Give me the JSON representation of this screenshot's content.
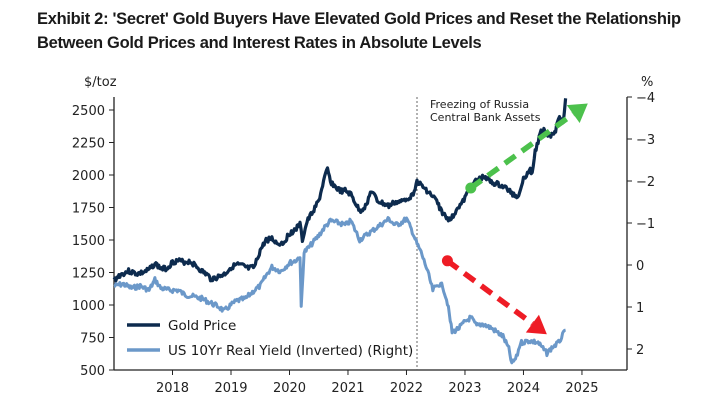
{
  "title_line1": "Exhibit 2: 'Secret' Gold Buyers Have Elevated Gold Prices and Reset the Relationship",
  "title_line2": "Between Gold Prices and Interest Rates in Absolute Levels",
  "chart_data": {
    "type": "line",
    "title": "Exhibit 2: 'Secret' Gold Buyers Have Elevated Gold Prices and Reset the Relationship Between Gold Prices and Interest Rates in Absolute Levels",
    "xlabel": "",
    "ylabel_left": "$/toz",
    "ylabel_right": "%",
    "xlim": [
      2017.0,
      2025.77
    ],
    "ylim_left": [
      500,
      2600
    ],
    "ylim_right": [
      2.5,
      -4.0
    ],
    "right_axis_inverted": true,
    "x_ticks": [
      2018,
      2019,
      2020,
      2021,
      2022,
      2023,
      2024,
      2025
    ],
    "y_ticks_left": [
      500,
      750,
      1000,
      1250,
      1500,
      1750,
      2000,
      2250,
      2500
    ],
    "y_ticks_right": [
      -4,
      -3,
      -2,
      -1,
      0,
      1,
      2
    ],
    "y_tick_labels_right": [
      "−4",
      "−3",
      "−2",
      "−1",
      "0",
      "1",
      "2"
    ],
    "grid": false,
    "legend_position": "lower-left",
    "series": [
      {
        "name": "Gold Price",
        "axis": "left",
        "color": "#0d2b4e",
        "x": [
          2017.0,
          2017.1,
          2017.25,
          2017.4,
          2017.5,
          2017.6,
          2017.7,
          2017.8,
          2017.9,
          2018.0,
          2018.1,
          2018.2,
          2018.3,
          2018.4,
          2018.5,
          2018.6,
          2018.65,
          2018.75,
          2018.9,
          2019.0,
          2019.1,
          2019.2,
          2019.3,
          2019.4,
          2019.5,
          2019.6,
          2019.7,
          2019.8,
          2019.9,
          2020.0,
          2020.1,
          2020.18,
          2020.22,
          2020.3,
          2020.4,
          2020.5,
          2020.6,
          2020.65,
          2020.7,
          2020.8,
          2020.9,
          2020.95,
          2021.05,
          2021.2,
          2021.3,
          2021.4,
          2021.5,
          2021.6,
          2021.7,
          2021.8,
          2021.9,
          2022.0,
          2022.1,
          2022.18,
          2022.25,
          2022.35,
          2022.5,
          2022.6,
          2022.7,
          2022.8,
          2022.85,
          2022.95,
          2023.1,
          2023.2,
          2023.35,
          2023.45,
          2023.55,
          2023.7,
          2023.8,
          2023.9,
          2024.0,
          2024.1,
          2024.15,
          2024.2,
          2024.3,
          2024.35,
          2024.45,
          2024.55,
          2024.6,
          2024.68,
          2024.72
        ],
        "values": [
          1190,
          1230,
          1260,
          1240,
          1250,
          1270,
          1320,
          1280,
          1280,
          1330,
          1340,
          1330,
          1335,
          1300,
          1260,
          1230,
          1200,
          1210,
          1240,
          1290,
          1310,
          1300,
          1280,
          1290,
          1420,
          1500,
          1510,
          1470,
          1480,
          1550,
          1580,
          1620,
          1500,
          1640,
          1720,
          1800,
          1980,
          2040,
          1950,
          1900,
          1870,
          1880,
          1850,
          1720,
          1760,
          1880,
          1800,
          1780,
          1760,
          1790,
          1790,
          1820,
          1840,
          1950,
          1920,
          1880,
          1810,
          1720,
          1660,
          1680,
          1740,
          1780,
          1910,
          1960,
          1990,
          1940,
          1930,
          1900,
          1860,
          1830,
          1970,
          2040,
          2020,
          2180,
          2330,
          2350,
          2300,
          2340,
          2450,
          2420,
          2590
        ]
      },
      {
        "name": "US 10Yr Real Yield (Inverted) (Right)",
        "axis": "right",
        "color": "#6b98c9",
        "x": [
          2017.0,
          2017.15,
          2017.3,
          2017.45,
          2017.6,
          2017.7,
          2017.8,
          2017.95,
          2018.1,
          2018.2,
          2018.35,
          2018.5,
          2018.65,
          2018.8,
          2018.88,
          2019.0,
          2019.1,
          2019.25,
          2019.4,
          2019.5,
          2019.6,
          2019.7,
          2019.85,
          2020.0,
          2020.1,
          2020.18,
          2020.2,
          2020.25,
          2020.35,
          2020.5,
          2020.6,
          2020.7,
          2020.85,
          2020.95,
          2021.05,
          2021.2,
          2021.35,
          2021.45,
          2021.6,
          2021.7,
          2021.8,
          2021.9,
          2022.0,
          2022.1,
          2022.18,
          2022.25,
          2022.35,
          2022.45,
          2022.55,
          2022.62,
          2022.7,
          2022.78,
          2022.9,
          2023.0,
          2023.1,
          2023.2,
          2023.3,
          2023.45,
          2023.55,
          2023.65,
          2023.75,
          2023.8,
          2023.88,
          2023.95,
          2024.1,
          2024.25,
          2024.4,
          2024.5,
          2024.6,
          2024.72
        ],
        "values": [
          0.5,
          0.45,
          0.55,
          0.5,
          0.6,
          0.35,
          0.55,
          0.6,
          0.6,
          0.7,
          0.75,
          0.8,
          0.9,
          1.0,
          1.1,
          0.95,
          0.85,
          0.8,
          0.6,
          0.5,
          0.25,
          0.05,
          0.15,
          -0.05,
          -0.1,
          -0.2,
          1.0,
          -0.3,
          -0.45,
          -0.7,
          -0.9,
          -1.05,
          -1.0,
          -0.95,
          -1.05,
          -0.6,
          -0.75,
          -0.85,
          -1.0,
          -1.1,
          -0.95,
          -1.0,
          -1.1,
          -0.8,
          -0.5,
          -0.3,
          0.1,
          0.6,
          0.45,
          0.5,
          0.9,
          1.6,
          1.5,
          1.35,
          1.25,
          1.45,
          1.4,
          1.5,
          1.6,
          1.7,
          2.0,
          2.35,
          2.2,
          1.85,
          1.8,
          1.85,
          2.1,
          1.95,
          1.85,
          1.55
        ]
      }
    ],
    "annotations": [
      {
        "type": "vline",
        "x": 2022.18,
        "label": "Freezing of Russia\nCentral Bank Assets",
        "style": "dotted"
      },
      {
        "type": "arrow",
        "color": "#4cc14c",
        "from": {
          "x": 2023.1,
          "gold": 1900
        },
        "to": {
          "x": 2025.1,
          "gold": 2550
        },
        "style": "dashed",
        "meaning": "gold rising"
      },
      {
        "type": "arrow",
        "color": "#ee1c25",
        "from": {
          "x": 2022.7,
          "ry": -0.1
        },
        "to": {
          "x": 2024.4,
          "ry": 1.65
        },
        "style": "dashed",
        "meaning": "yields falling (inverted)"
      }
    ]
  },
  "vline_label_line1": "Freezing of Russia",
  "vline_label_line2": "Central Bank Assets",
  "legend": [
    {
      "label": "Gold Price",
      "color": "#0d2b4e"
    },
    {
      "label": "US 10Yr Real Yield (Inverted) (Right)",
      "color": "#6b98c9"
    }
  ]
}
